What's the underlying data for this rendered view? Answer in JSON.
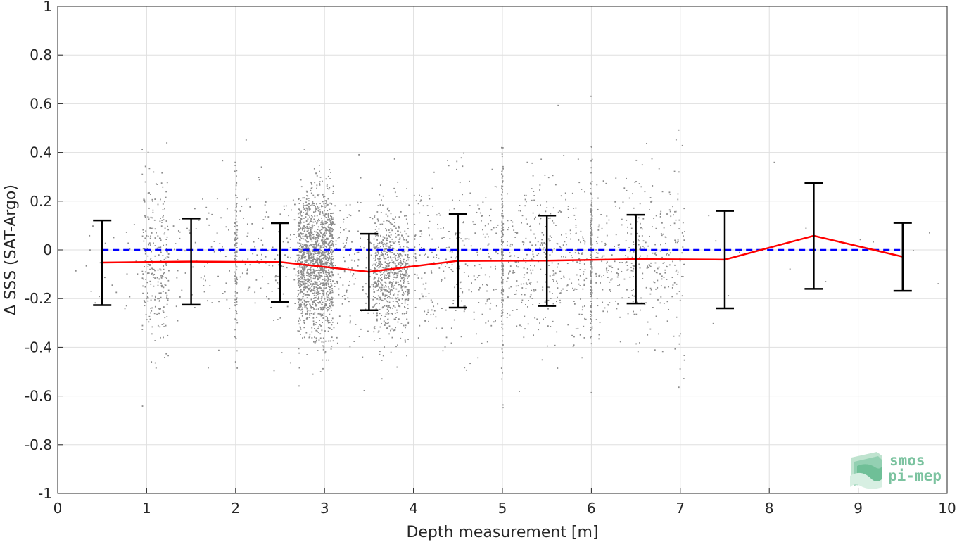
{
  "chart_data": {
    "type": "scatter",
    "xlabel": "Depth measurement [m]",
    "ylabel": "Δ SSS (SAT-Argo)",
    "xlim": [
      0,
      10
    ],
    "ylim": [
      -1,
      1
    ],
    "x_ticks": [
      "0",
      "1",
      "2",
      "3",
      "4",
      "5",
      "6",
      "7",
      "8",
      "9",
      "10"
    ],
    "y_ticks": [
      "-1",
      "-0.8",
      "-0.6",
      "-0.4",
      "-0.2",
      "0",
      "0.2",
      "0.4",
      "0.6",
      "0.8",
      "1"
    ],
    "grid": true,
    "series": [
      {
        "style": "gray scatter points",
        "color": "#8c8c8c",
        "clusters": [
          {
            "x_range": [
              0.2,
              0.9
            ],
            "y_mean": -0.05,
            "y_sd": 0.12,
            "count": 25
          },
          {
            "x_range": [
              0.95,
              1.25
            ],
            "y_mean": -0.05,
            "y_sd": 0.17,
            "count": 260
          },
          {
            "x_range": [
              1.3,
              1.95
            ],
            "y_mean": -0.05,
            "y_sd": 0.15,
            "count": 70
          },
          {
            "x_range": [
              1.99,
              2.02
            ],
            "y_mean": -0.05,
            "y_sd": 0.17,
            "count": 110
          },
          {
            "x_range": [
              2.05,
              2.7
            ],
            "y_mean": -0.04,
            "y_sd": 0.16,
            "count": 120
          },
          {
            "x_range": [
              2.7,
              3.1
            ],
            "y_mean": -0.06,
            "y_sd": 0.15,
            "count": 1500
          },
          {
            "x_range": [
              3.1,
              3.6
            ],
            "y_mean": -0.08,
            "y_sd": 0.15,
            "count": 140
          },
          {
            "x_range": [
              3.55,
              3.95
            ],
            "y_mean": -0.09,
            "y_sd": 0.13,
            "count": 700
          },
          {
            "x_range": [
              4.0,
              4.95
            ],
            "y_mean": -0.05,
            "y_sd": 0.18,
            "count": 280
          },
          {
            "x_range": [
              4.99,
              5.01
            ],
            "y_mean": -0.03,
            "y_sd": 0.2,
            "count": 200
          },
          {
            "x_range": [
              5.05,
              5.95
            ],
            "y_mean": -0.05,
            "y_sd": 0.17,
            "count": 380
          },
          {
            "x_range": [
              5.99,
              6.01
            ],
            "y_mean": -0.03,
            "y_sd": 0.2,
            "count": 190
          },
          {
            "x_range": [
              6.05,
              6.95
            ],
            "y_mean": -0.04,
            "y_sd": 0.16,
            "count": 330
          },
          {
            "x_range": [
              6.95,
              7.05
            ],
            "y_mean": -0.02,
            "y_sd": 0.2,
            "count": 45
          },
          {
            "x_range": [
              7.1,
              9.9
            ],
            "y_mean": -0.02,
            "y_sd": 0.15,
            "count": 14
          }
        ]
      },
      {
        "style": "red line",
        "color": "#ff0000",
        "x": [
          0.5,
          1.5,
          2.5,
          3.5,
          4.5,
          5.5,
          6.5,
          7.5,
          8.5,
          9.5
        ],
        "y": [
          -0.052,
          -0.048,
          -0.05,
          -0.09,
          -0.045,
          -0.044,
          -0.038,
          -0.04,
          0.058,
          -0.028
        ]
      },
      {
        "style": "black error bars",
        "color": "#000000",
        "x": [
          0.5,
          1.5,
          2.5,
          3.5,
          4.5,
          5.5,
          6.5,
          7.5,
          8.5,
          9.5
        ],
        "lower": [
          -0.227,
          -0.225,
          -0.213,
          -0.248,
          -0.237,
          -0.23,
          -0.22,
          -0.24,
          -0.16,
          -0.168
        ],
        "upper": [
          0.121,
          0.129,
          0.11,
          0.066,
          0.147,
          0.141,
          0.144,
          0.16,
          0.275,
          0.111
        ]
      },
      {
        "style": "blue dashed zero line",
        "color": "#0000ff",
        "x": [
          0.5,
          9.5
        ],
        "y": [
          0,
          0
        ]
      }
    ]
  },
  "logo": {
    "line1": "smos",
    "line2": "pi-mep",
    "color": "#7cc3a0"
  }
}
